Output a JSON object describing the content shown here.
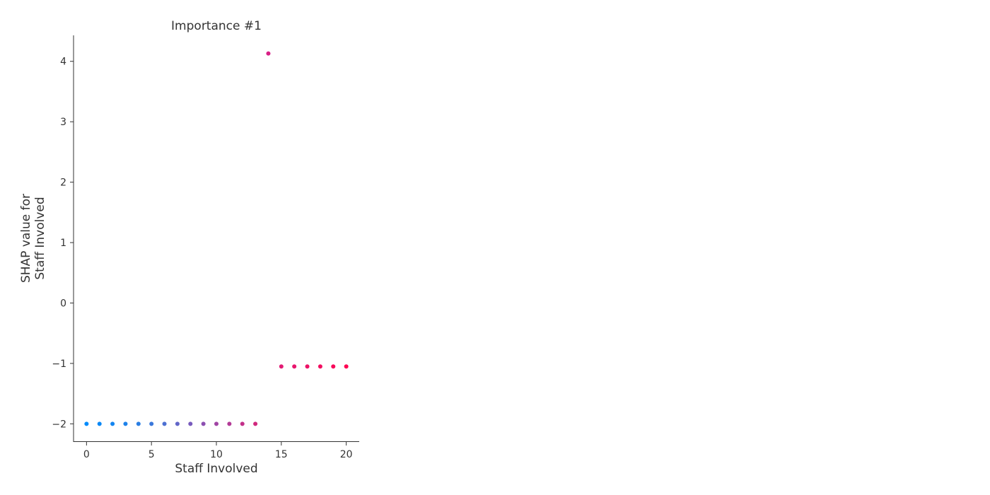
{
  "chart_data": {
    "type": "scatter",
    "title": "Importance #1",
    "xlabel": "Staff Involved",
    "ylabel_lines": [
      "SHAP value for",
      "Staff Involved"
    ],
    "xlim": [
      -1,
      21
    ],
    "ylim": [
      -2.3,
      4.43
    ],
    "xticks": [
      {
        "value": 0,
        "label": "0"
      },
      {
        "value": 5,
        "label": "5"
      },
      {
        "value": 10,
        "label": "10"
      },
      {
        "value": 15,
        "label": "15"
      },
      {
        "value": 20,
        "label": "20"
      }
    ],
    "yticks": [
      {
        "value": -2,
        "label": "−2"
      },
      {
        "value": -1,
        "label": "−1"
      },
      {
        "value": 0,
        "label": "0"
      },
      {
        "value": 1,
        "label": "1"
      },
      {
        "value": 2,
        "label": "2"
      },
      {
        "value": 3,
        "label": "3"
      },
      {
        "value": 4,
        "label": "4"
      }
    ],
    "grid": false,
    "legend": "none",
    "colors": {
      "axis": "#333333",
      "low": "#008bfb",
      "high": "#ff0052"
    },
    "points": [
      {
        "x": 0,
        "y": -2.0,
        "color": "#008bfb"
      },
      {
        "x": 1,
        "y": -2.0,
        "color": "#0a88f6"
      },
      {
        "x": 2,
        "y": -2.0,
        "color": "#1485f0"
      },
      {
        "x": 3,
        "y": -2.0,
        "color": "#1e82ea"
      },
      {
        "x": 4,
        "y": -2.0,
        "color": "#2a7ee3"
      },
      {
        "x": 5,
        "y": -2.0,
        "color": "#3a78db"
      },
      {
        "x": 6,
        "y": -2.0,
        "color": "#4d70d2"
      },
      {
        "x": 7,
        "y": -2.0,
        "color": "#6266c8"
      },
      {
        "x": 8,
        "y": -2.0,
        "color": "#785bbd"
      },
      {
        "x": 9,
        "y": -2.0,
        "color": "#8c50b1"
      },
      {
        "x": 10,
        "y": -2.0,
        "color": "#a045a4"
      },
      {
        "x": 11,
        "y": -2.0,
        "color": "#b33b97"
      },
      {
        "x": 12,
        "y": -2.0,
        "color": "#c3308a"
      },
      {
        "x": 13,
        "y": -2.0,
        "color": "#d0287d"
      },
      {
        "x": 14,
        "y": 4.13,
        "color": "#d81f85"
      },
      {
        "x": 15,
        "y": -1.05,
        "color": "#e21a74"
      },
      {
        "x": 16,
        "y": -1.05,
        "color": "#e8166d"
      },
      {
        "x": 17,
        "y": -1.05,
        "color": "#ed1266"
      },
      {
        "x": 18,
        "y": -1.05,
        "color": "#f20d60"
      },
      {
        "x": 19,
        "y": -1.05,
        "color": "#f8085a"
      },
      {
        "x": 20,
        "y": -1.05,
        "color": "#ff0052"
      }
    ]
  }
}
